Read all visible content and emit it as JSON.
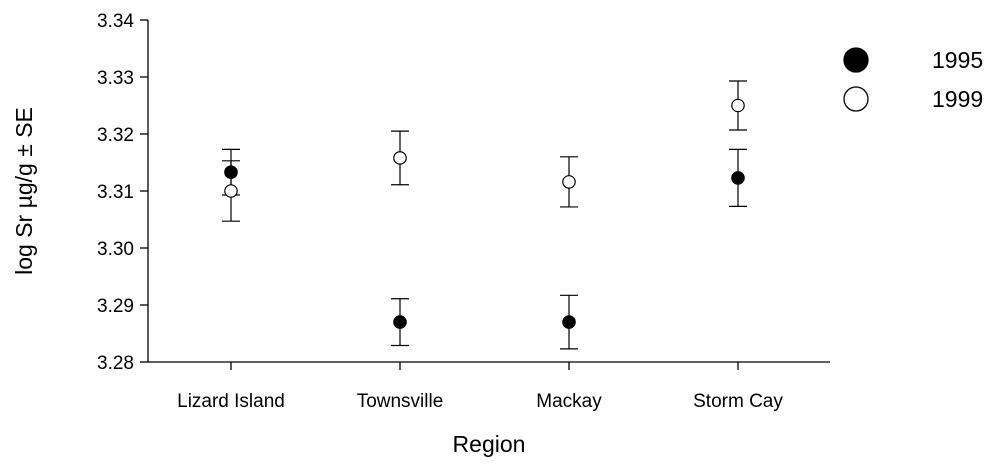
{
  "chart_data": {
    "type": "scatter",
    "xlabel": "Region",
    "ylabel": "log Sr µg/g ± SE",
    "categories": [
      "Lizard Island",
      "Townsville",
      "Mackay",
      "Storm Cay"
    ],
    "ylim": [
      3.28,
      3.34
    ],
    "yticks": [
      "3.28",
      "3.29",
      "3.30",
      "3.31",
      "3.32",
      "3.33",
      "3.34"
    ],
    "grid": false,
    "legend_position": "top-right",
    "error_bars": "± SE",
    "series": [
      {
        "name": "1995",
        "marker": "filled-circle",
        "color": "#000000",
        "values": [
          3.3133,
          3.287,
          3.287,
          3.3123
        ],
        "se": [
          0.004,
          0.0041,
          0.0047,
          0.005
        ]
      },
      {
        "name": "1999",
        "marker": "open-circle",
        "color": "#000000",
        "values": [
          3.31,
          3.3158,
          3.3116,
          3.325
        ],
        "se": [
          0.0053,
          0.0047,
          0.0044,
          0.0043
        ]
      }
    ]
  }
}
